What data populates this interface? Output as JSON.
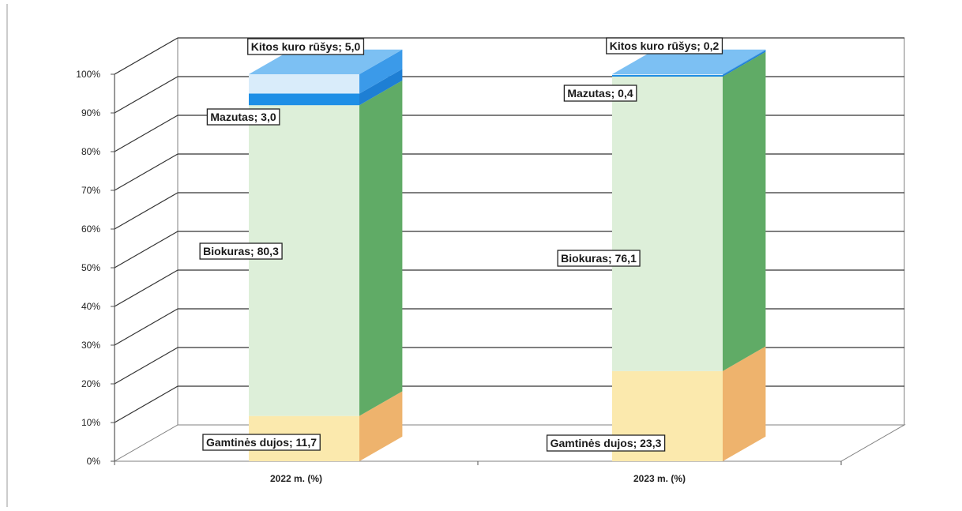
{
  "chart_data": {
    "type": "bar",
    "stacked": true,
    "three_d": true,
    "categories": [
      "2022 m. (%)",
      "2023 m. (%)"
    ],
    "ylim": [
      0,
      100
    ],
    "yticks": [
      "0%",
      "10%",
      "20%",
      "30%",
      "40%",
      "50%",
      "60%",
      "70%",
      "80%",
      "90%",
      "100%"
    ],
    "grid": true,
    "series": [
      {
        "name": "Gamtinės dujos",
        "values": [
          11.7,
          23.3
        ],
        "colors": {
          "front": "#fbe9ad",
          "side": "#eeb36d",
          "top": "#f7d490"
        }
      },
      {
        "name": "Biokuras",
        "values": [
          80.3,
          76.1
        ],
        "colors": {
          "front": "#ddefd9",
          "side": "#60ab66",
          "top": "#a8d4a4"
        }
      },
      {
        "name": "Mazutas",
        "values": [
          3.0,
          0.4
        ],
        "colors": {
          "front": "#1e8fe6",
          "side": "#1e7fd4",
          "top": "#48a6ef"
        }
      },
      {
        "name": "Kitos kuro rūšys",
        "values": [
          5.0,
          0.2
        ],
        "colors": {
          "front": "#d9ecfa",
          "side": "#3b9ae9",
          "top": "#7cc0f3"
        }
      }
    ],
    "data_labels": [
      [
        "Gamtinės dujos; 11,7",
        "Biokuras; 80,3",
        "Mazutas; 3,0",
        "Kitos kuro rūšys; 5,0"
      ],
      [
        "Gamtinės dujos; 23,3",
        "Biokuras; 76,1",
        "Mazutas; 0,4",
        "Kitos kuro rūšys; 0,2"
      ]
    ]
  }
}
